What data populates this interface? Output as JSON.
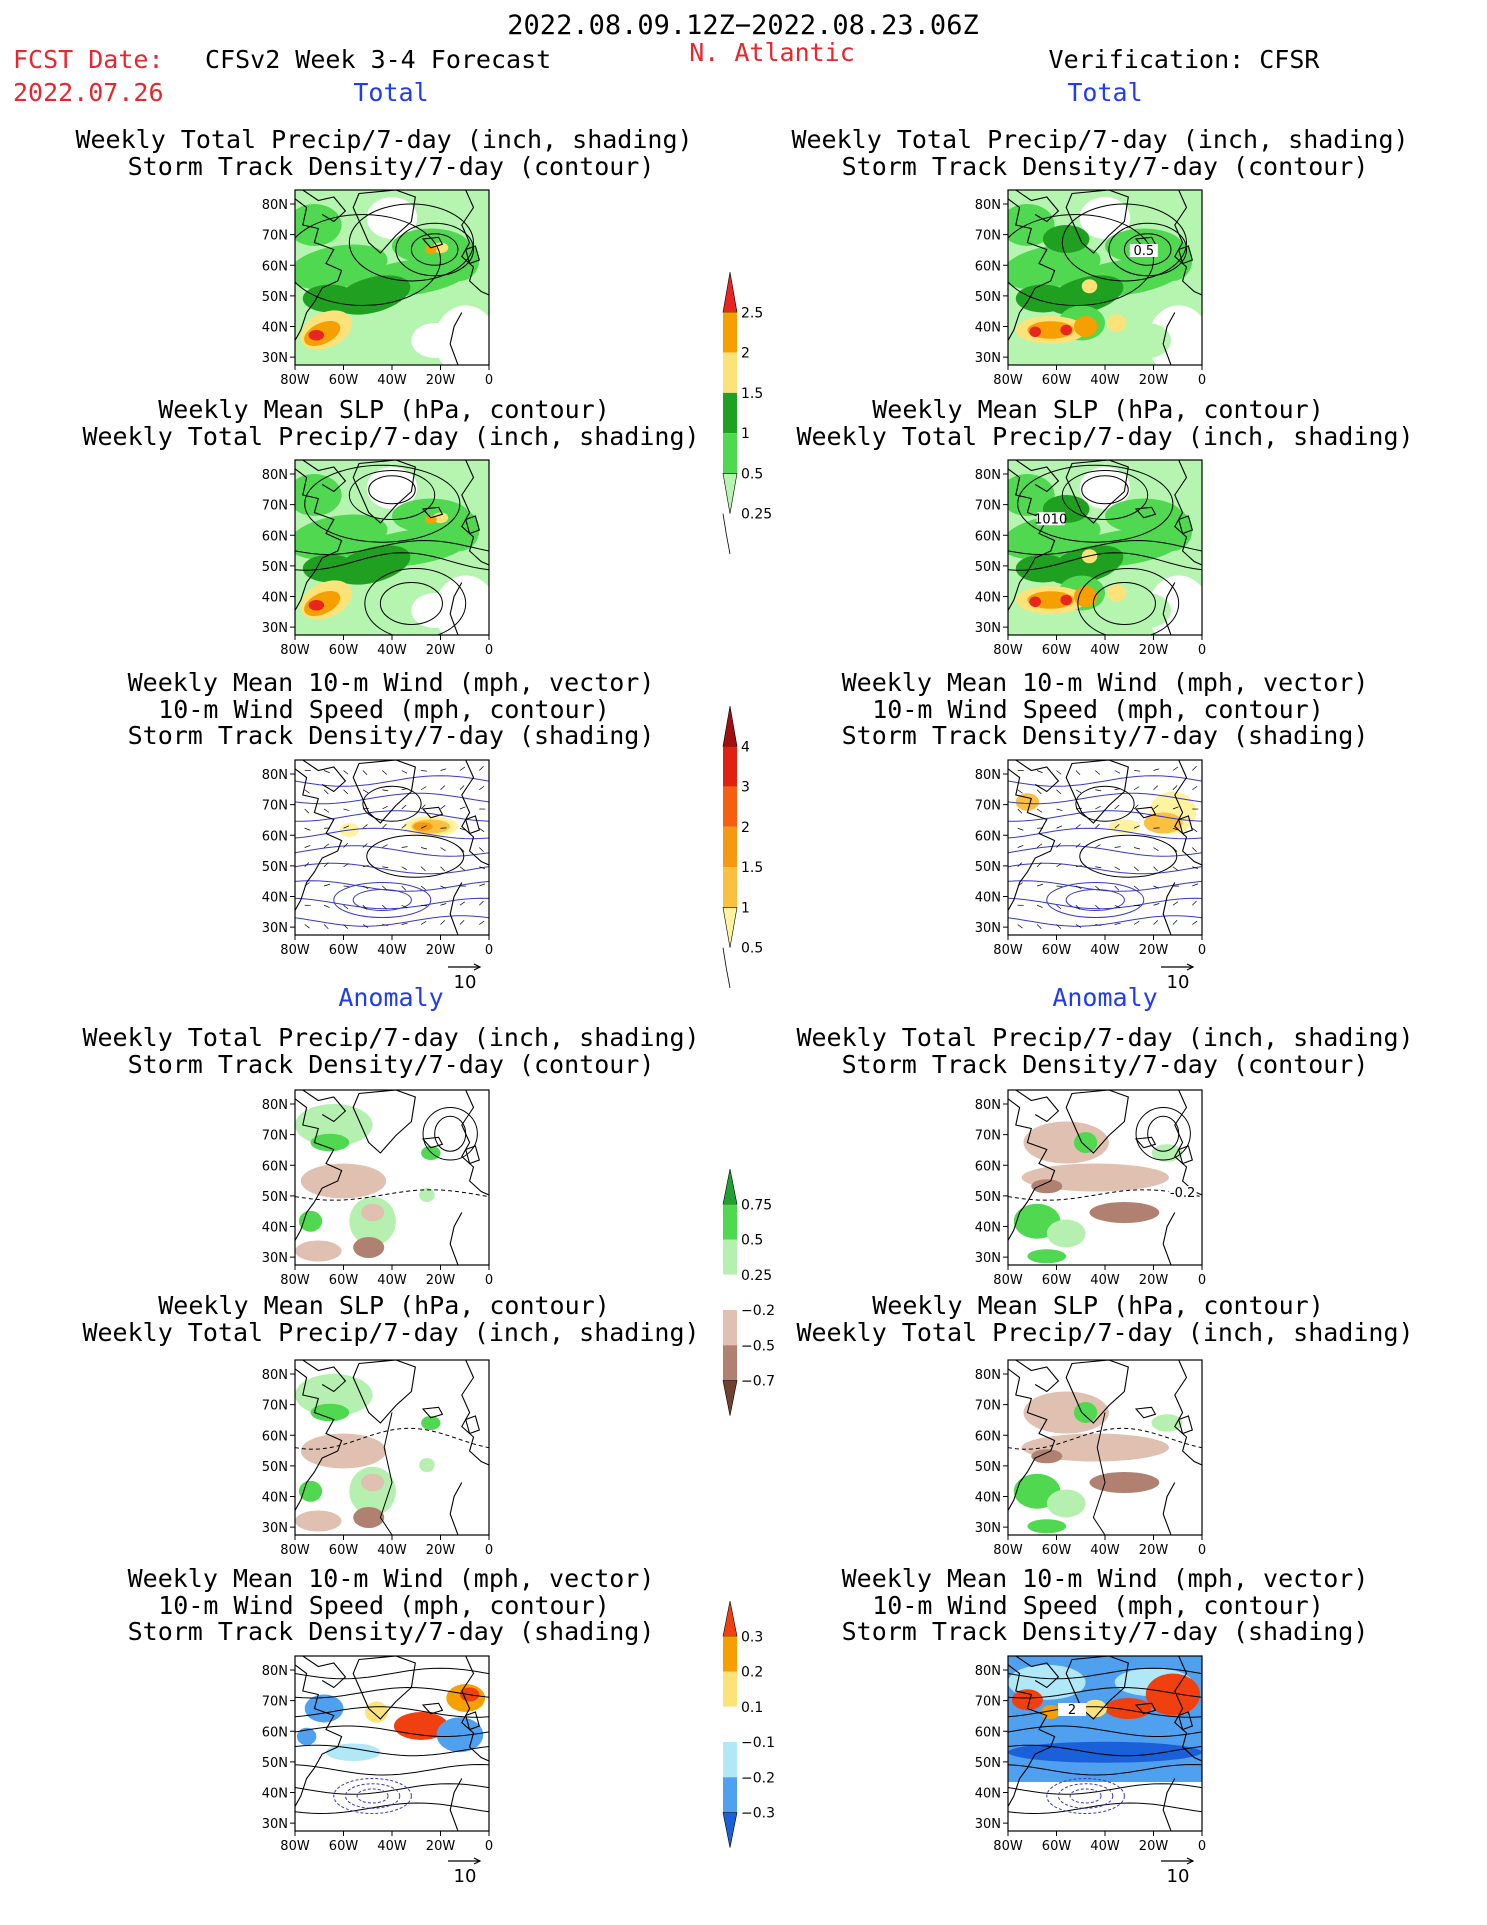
{
  "header": {
    "date_range": "2022.08.09.12Z−2022.08.23.06Z",
    "fcst_label": "FCST Date:",
    "fcst_date": "2022.07.26",
    "model_title": "CFSv2 Week 3-4 Forecast",
    "region": "N. Atlantic",
    "verification": "Verification: CFSR"
  },
  "sections": {
    "total": "Total",
    "anomaly": "Anomaly"
  },
  "titles": {
    "p1a": "Weekly Total Precip/7-day (inch, shading)",
    "p1b": "Storm Track Density/7-day (contour)",
    "p2a": "Weekly Mean SLP (hPa, contour)",
    "p2b": "Weekly Total Precip/7-day (inch, shading)",
    "p3a": "Weekly Mean 10-m Wind (mph, vector)",
    "p3b": "10-m Wind Speed (mph, contour)",
    "p3c": "Storm Track Density/7-day (shading)"
  },
  "map_axes": {
    "lat_ticks": [
      "80N",
      "70N",
      "60N",
      "50N",
      "40N",
      "30N"
    ],
    "lon_ticks": [
      "80W",
      "60W",
      "40W",
      "20W",
      "0"
    ]
  },
  "vector_ref": "10",
  "contour_labels": {
    "verif_total_track": "0.5",
    "verif_total_slp": "1010",
    "verif_anom_track": "-0.2",
    "verif_anom_wind": "2"
  },
  "colorbars": {
    "precip_total": {
      "ticks": [
        "2.5",
        "2",
        "1.5",
        "1",
        "0.5",
        "0.25"
      ],
      "colors": [
        "#e8251e",
        "#f5a000",
        "#fbe37a",
        "#20a020",
        "#50d850",
        "#b5f5b0"
      ]
    },
    "track_total": {
      "ticks": [
        "4",
        "3",
        "2",
        "1.5",
        "1",
        "0.5"
      ],
      "colors": [
        "#a01010",
        "#e02010",
        "#f56010",
        "#f59a10",
        "#fac040",
        "#fff3a0"
      ]
    },
    "precip_anom": {
      "ticks": [
        "0.75",
        "0.5",
        "0.25",
        "−0.25",
        "−0.5",
        "−0.75"
      ],
      "colors": [
        "#20a030",
        "#50d850",
        "#b5f0b0",
        "#ffffff",
        "#e0c0b0",
        "#b08070",
        "#704030"
      ]
    },
    "track_anom": {
      "ticks": [
        "0.3",
        "0.2",
        "0.1",
        "−0.1",
        "−0.2",
        "−0.3"
      ],
      "colors": [
        "#f04010",
        "#f5a000",
        "#fbe37a",
        "#ffffff",
        "#b0e8f8",
        "#50a0f0",
        "#1a60d8"
      ]
    }
  }
}
